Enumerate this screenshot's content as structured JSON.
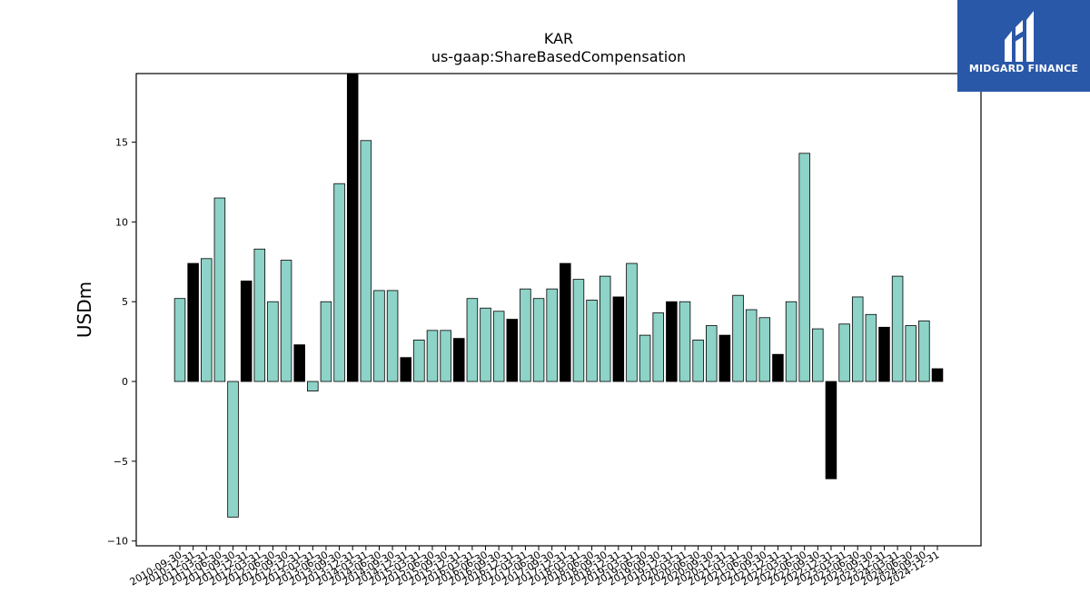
{
  "chart_data": {
    "type": "bar",
    "title": "KAR",
    "subtitle": "us-gaap:ShareBasedCompensation",
    "ylabel": "USDm",
    "xlabel": "",
    "ylim": [
      -10.3,
      19.3
    ],
    "yticks": [
      -10,
      -5,
      0,
      5,
      10,
      15
    ],
    "ytick_labels": [
      "−10",
      "−5",
      "0",
      "5",
      "10",
      "15"
    ],
    "categories": [
      "2010-09-30",
      "2010-12-31",
      "2011-03-31",
      "2011-06-30",
      "2011-09-30",
      "2011-12-31",
      "2012-03-31",
      "2012-06-30",
      "2012-09-30",
      "2012-12-31",
      "2013-03-31",
      "2013-06-30",
      "2013-09-30",
      "2013-12-31",
      "2014-03-31",
      "2014-06-30",
      "2014-09-30",
      "2014-12-31",
      "2015-03-31",
      "2015-06-30",
      "2015-09-30",
      "2015-12-31",
      "2016-03-31",
      "2016-06-30",
      "2016-09-30",
      "2016-12-31",
      "2017-03-31",
      "2017-06-30",
      "2017-09-30",
      "2017-12-31",
      "2018-03-31",
      "2018-06-30",
      "2018-09-30",
      "2018-12-31",
      "2019-03-31",
      "2019-06-30",
      "2019-09-30",
      "2019-12-31",
      "2020-03-31",
      "2020-06-30",
      "2020-09-30",
      "2020-12-31",
      "2021-03-31",
      "2021-06-30",
      "2021-09-30",
      "2021-12-31",
      "2022-03-31",
      "2022-06-30",
      "2022-09-30",
      "2022-12-31",
      "2023-03-31",
      "2023-06-30",
      "2023-09-30",
      "2023-12-31",
      "2024-03-31",
      "2024-06-30",
      "2024-09-30",
      "2024-12-31"
    ],
    "values": [
      5.2,
      7.4,
      7.7,
      11.5,
      -8.5,
      6.3,
      8.3,
      5.0,
      7.6,
      2.3,
      -0.6,
      5.0,
      12.4,
      19.3,
      15.1,
      5.7,
      5.7,
      1.5,
      2.6,
      3.2,
      3.2,
      2.7,
      5.2,
      4.6,
      4.4,
      3.9,
      5.8,
      5.2,
      5.8,
      7.4,
      6.4,
      5.1,
      6.6,
      5.3,
      7.4,
      2.9,
      4.3,
      5.0,
      5.0,
      2.6,
      3.5,
      2.9,
      5.4,
      4.5,
      4.0,
      1.7,
      5.0,
      14.3,
      3.3,
      -6.1,
      3.6,
      5.3,
      4.2,
      3.4,
      6.6,
      3.5,
      3.8,
      0.8
    ],
    "highlight_quarter": "Q4",
    "colors": {
      "regular": "#8dd3c7",
      "q4": "#000000",
      "edge": "#000000"
    },
    "grid": false,
    "legend": "none"
  },
  "logo": {
    "text": "MIDGARD FINANCE",
    "color": "#2a58a8"
  }
}
